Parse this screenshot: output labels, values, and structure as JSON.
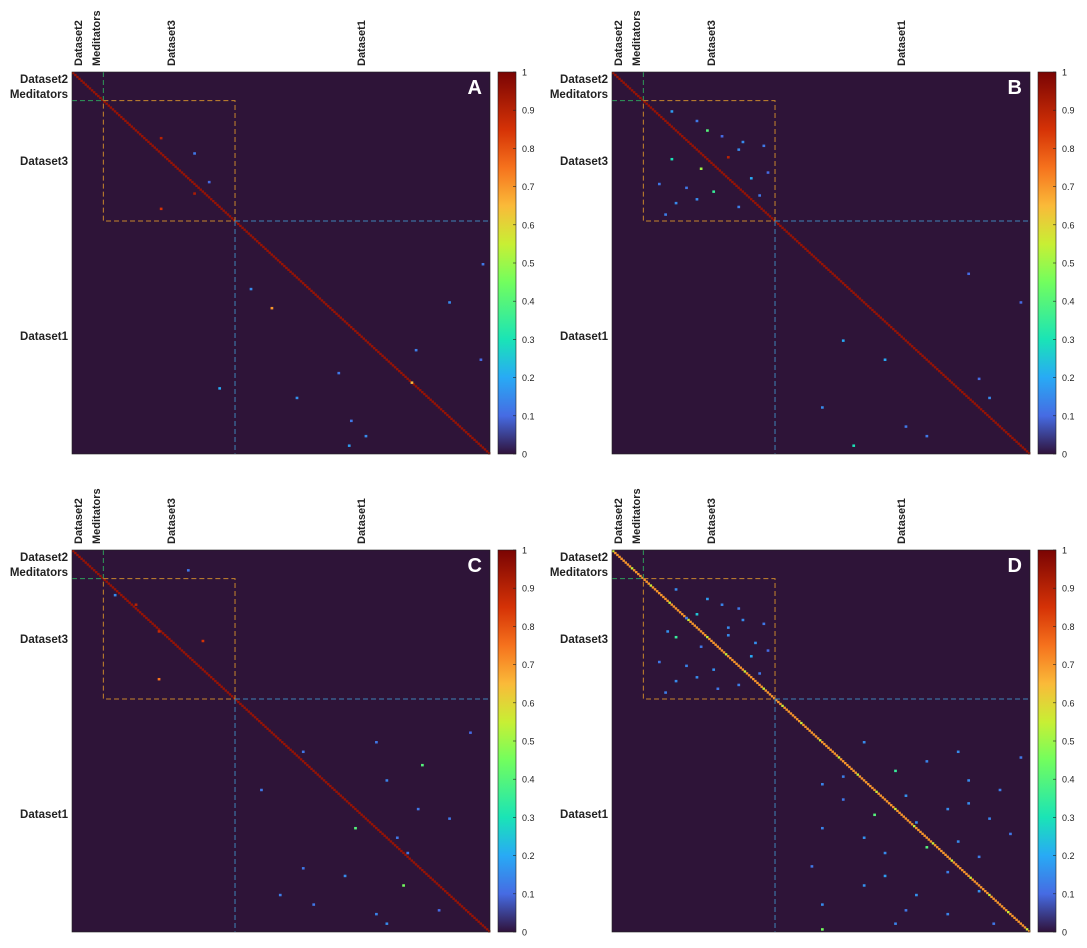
{
  "colors": {
    "background": "#2e1438",
    "diag": "#c8250a",
    "block_dataset3": "#c8862c",
    "block_dataset1": "#3f84b8",
    "block_meditators": "#2e9a5a"
  },
  "chart_data": [
    {
      "type": "heatmap",
      "panel_label": "A",
      "group_labels": [
        "Dataset2",
        "Meditators",
        "Dataset3",
        "Dataset1"
      ],
      "colorbar": {
        "min": 0,
        "max": 1,
        "ticks": [
          "0",
          "0.1",
          "0.2",
          "0.3",
          "0.4",
          "0.5",
          "0.6",
          "0.7",
          "0.8",
          "0.9",
          "1"
        ],
        "colormap": "turbo"
      },
      "n": 200,
      "group_bounds": {
        "dataset2_end": 8,
        "meditators_end": 15,
        "dataset3_end": 78,
        "dataset1_end": 200
      },
      "diagonal_value": 0.95,
      "off_diagonal": [
        [
          34,
          42,
          0.9
        ],
        [
          63,
          58,
          0.92
        ],
        [
          42,
          58,
          0.12
        ],
        [
          71,
          42,
          0.85
        ],
        [
          57,
          65,
          0.1
        ],
        [
          113,
          85,
          0.15
        ],
        [
          120,
          180,
          0.15
        ],
        [
          145,
          164,
          0.13
        ],
        [
          157,
          127,
          0.12
        ],
        [
          170,
          107,
          0.16
        ],
        [
          182,
          133,
          0.12
        ],
        [
          162,
          162,
          0.65
        ],
        [
          123,
          95,
          0.7
        ],
        [
          165,
          70,
          0.2
        ],
        [
          190,
          140,
          0.15
        ],
        [
          195,
          132,
          0.18
        ],
        [
          100,
          196,
          0.12
        ],
        [
          150,
          195,
          0.1
        ]
      ]
    },
    {
      "type": "heatmap",
      "panel_label": "B",
      "group_labels": [
        "Dataset2",
        "Meditators",
        "Dataset3",
        "Dataset1"
      ],
      "colorbar": {
        "min": 0,
        "max": 1,
        "ticks": [
          "0",
          "0.1",
          "0.2",
          "0.3",
          "0.4",
          "0.5",
          "0.6",
          "0.7",
          "0.8",
          "0.9",
          "1"
        ],
        "colormap": "turbo"
      },
      "n": 200,
      "group_bounds": {
        "dataset2_end": 8,
        "meditators_end": 15,
        "dataset3_end": 78,
        "dataset1_end": 200
      },
      "diagonal_value": 0.95,
      "off_diagonal": [
        [
          20,
          28,
          0.18
        ],
        [
          25,
          40,
          0.12
        ],
        [
          30,
          45,
          0.4
        ],
        [
          33,
          52,
          0.1
        ],
        [
          40,
          60,
          0.15
        ],
        [
          45,
          28,
          0.3
        ],
        [
          50,
          42,
          0.5
        ],
        [
          55,
          66,
          0.2
        ],
        [
          60,
          35,
          0.12
        ],
        [
          62,
          48,
          0.35
        ],
        [
          68,
          30,
          0.15
        ],
        [
          70,
          60,
          0.13
        ],
        [
          38,
          72,
          0.12
        ],
        [
          52,
          74,
          0.1
        ],
        [
          44,
          55,
          0.9
        ],
        [
          58,
          22,
          0.12
        ],
        [
          66,
          40,
          0.15
        ],
        [
          74,
          25,
          0.13
        ],
        [
          36,
          62,
          0.15
        ],
        [
          64,
          70,
          0.12
        ],
        [
          120,
          195,
          0.1
        ],
        [
          150,
          130,
          0.2
        ],
        [
          170,
          180,
          0.15
        ],
        [
          185,
          140,
          0.12
        ],
        [
          160,
          175,
          0.1
        ],
        [
          140,
          110,
          0.2
        ],
        [
          175,
          100,
          0.15
        ],
        [
          190,
          150,
          0.12
        ],
        [
          105,
          170,
          0.1
        ],
        [
          195,
          115,
          0.3
        ]
      ]
    },
    {
      "type": "heatmap",
      "panel_label": "C",
      "group_labels": [
        "Dataset2",
        "Meditators",
        "Dataset3",
        "Dataset1"
      ],
      "colorbar": {
        "min": 0,
        "max": 1,
        "ticks": [
          "0",
          "0.1",
          "0.2",
          "0.3",
          "0.4",
          "0.5",
          "0.6",
          "0.7",
          "0.8",
          "0.9",
          "1"
        ],
        "colormap": "turbo"
      },
      "n": 200,
      "group_bounds": {
        "dataset2_end": 8,
        "meditators_end": 15,
        "dataset3_end": 78,
        "dataset1_end": 200
      },
      "diagonal_value": 0.95,
      "off_diagonal": [
        [
          28,
          30,
          0.9
        ],
        [
          42,
          41,
          0.88
        ],
        [
          67,
          41,
          0.75
        ],
        [
          47,
          62,
          0.85
        ],
        [
          10,
          55,
          0.12
        ],
        [
          23,
          20,
          0.15
        ],
        [
          100,
          145,
          0.12
        ],
        [
          112,
          167,
          0.4
        ],
        [
          145,
          135,
          0.4
        ],
        [
          158,
          160,
          0.12
        ],
        [
          170,
          130,
          0.15
        ],
        [
          185,
          115,
          0.12
        ],
        [
          190,
          145,
          0.14
        ],
        [
          125,
          90,
          0.12
        ],
        [
          135,
          165,
          0.12
        ],
        [
          95,
          190,
          0.1
        ],
        [
          180,
          99,
          0.13
        ],
        [
          166,
          110,
          0.12
        ],
        [
          175,
          158,
          0.45
        ],
        [
          140,
          180,
          0.12
        ],
        [
          105,
          110,
          0.12
        ],
        [
          188,
          175,
          0.1
        ],
        [
          120,
          150,
          0.14
        ],
        [
          150,
          155,
          0.12
        ],
        [
          195,
          150,
          0.15
        ]
      ]
    },
    {
      "type": "heatmap",
      "panel_label": "D",
      "group_labels": [
        "Dataset2",
        "Meditators",
        "Dataset3",
        "Dataset1"
      ],
      "colorbar": {
        "min": 0,
        "max": 1,
        "ticks": [
          "0",
          "0.1",
          "0.2",
          "0.3",
          "0.4",
          "0.5",
          "0.6",
          "0.7",
          "0.8",
          "0.9",
          "1"
        ],
        "colormap": "turbo"
      },
      "n": 200,
      "group_bounds": {
        "dataset2_end": 8,
        "meditators_end": 15,
        "dataset3_end": 78,
        "dataset1_end": 200
      },
      "diagonal_value": 0.7,
      "off_diagonal": [
        [
          20,
          30,
          0.15
        ],
        [
          25,
          45,
          0.18
        ],
        [
          30,
          60,
          0.12
        ],
        [
          33,
          40,
          0.25
        ],
        [
          40,
          55,
          0.15
        ],
        [
          45,
          30,
          0.35
        ],
        [
          50,
          42,
          0.12
        ],
        [
          55,
          66,
          0.2
        ],
        [
          60,
          35,
          0.14
        ],
        [
          62,
          48,
          0.16
        ],
        [
          68,
          30,
          0.15
        ],
        [
          70,
          60,
          0.13
        ],
        [
          38,
          72,
          0.12
        ],
        [
          52,
          74,
          0.1
        ],
        [
          44,
          55,
          0.15
        ],
        [
          58,
          22,
          0.12
        ],
        [
          66,
          40,
          0.15
        ],
        [
          74,
          25,
          0.13
        ],
        [
          36,
          62,
          0.15
        ],
        [
          64,
          70,
          0.12
        ],
        [
          28,
          52,
          0.14
        ],
        [
          48,
          68,
          0.16
        ],
        [
          72,
          50,
          0.12
        ],
        [
          35,
          35,
          0.13
        ],
        [
          42,
          26,
          0.16
        ],
        [
          110,
          150,
          0.14
        ],
        [
          120,
          170,
          0.15
        ],
        [
          130,
          110,
          0.12
        ],
        [
          140,
          180,
          0.14
        ],
        [
          150,
          120,
          0.16
        ],
        [
          160,
          175,
          0.13
        ],
        [
          170,
          130,
          0.18
        ],
        [
          180,
          145,
          0.16
        ],
        [
          190,
          160,
          0.14
        ],
        [
          195,
          182,
          0.12
        ],
        [
          100,
          120,
          0.15
        ],
        [
          115,
          135,
          0.35
        ],
        [
          125,
          185,
          0.13
        ],
        [
          135,
          160,
          0.15
        ],
        [
          145,
          100,
          0.14
        ],
        [
          155,
          150,
          0.4
        ],
        [
          165,
          95,
          0.12
        ],
        [
          175,
          120,
          0.16
        ],
        [
          185,
          100,
          0.15
        ],
        [
          195,
          135,
          0.14
        ],
        [
          105,
          165,
          0.15
        ],
        [
          118,
          110,
          0.13
        ],
        [
          128,
          140,
          0.16
        ],
        [
          138,
          125,
          0.4
        ],
        [
          148,
          190,
          0.12
        ],
        [
          158,
          130,
          0.15
        ],
        [
          168,
          160,
          0.13
        ],
        [
          178,
          175,
          0.16
        ],
        [
          188,
          140,
          0.12
        ],
        [
          198,
          100,
          0.45
        ],
        [
          108,
          195,
          0.12
        ],
        [
          122,
          100,
          0.14
        ],
        [
          132,
          170,
          0.15
        ],
        [
          142,
          145,
          0.15
        ],
        [
          152,
          165,
          0.15
        ]
      ]
    }
  ],
  "panels": [
    {
      "label": "A",
      "groups": {
        "d2": "Dataset2",
        "med": "Meditators",
        "d3": "Dataset3",
        "d1": "Dataset1"
      }
    },
    {
      "label": "B",
      "groups": {
        "d2": "Dataset2",
        "med": "Meditators",
        "d3": "Dataset3",
        "d1": "Dataset1"
      }
    },
    {
      "label": "C",
      "groups": {
        "d2": "Dataset2",
        "med": "Meditators",
        "d3": "Dataset3",
        "d1": "Dataset1"
      }
    },
    {
      "label": "D",
      "groups": {
        "d2": "Dataset2",
        "med": "Meditators",
        "d3": "Dataset3",
        "d1": "Dataset1"
      }
    }
  ]
}
